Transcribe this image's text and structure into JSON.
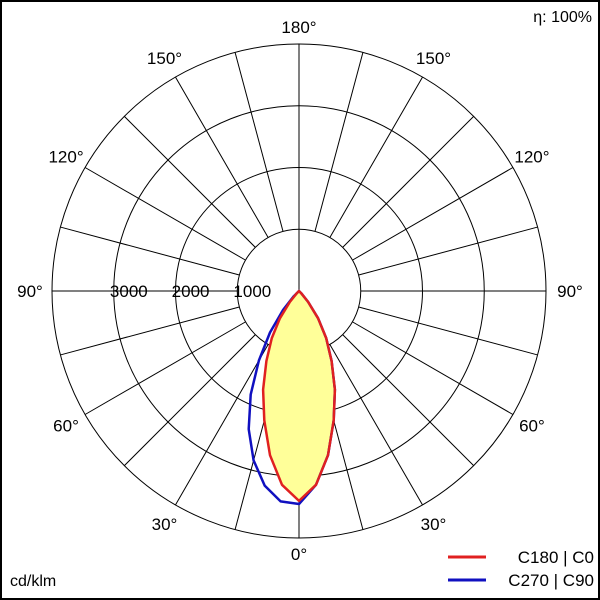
{
  "efficiency_label": "η: 100%",
  "unit_label": "cd/klm",
  "colors": {
    "frame": "#000000",
    "grid": "#000000",
    "fill": "#ffff99",
    "c0": "#e02020",
    "c90": "#1010c0"
  },
  "chart_data": {
    "type": "polar",
    "angle_labels": [
      {
        "angle": 180,
        "text": "180°"
      },
      {
        "angle": 150,
        "text": "150°",
        "side": "left"
      },
      {
        "angle": 150,
        "text": "150°",
        "side": "right"
      },
      {
        "angle": 120,
        "text": "120°",
        "side": "left"
      },
      {
        "angle": 120,
        "text": "120°",
        "side": "right"
      },
      {
        "angle": 90,
        "text": "90°",
        "side": "left"
      },
      {
        "angle": 90,
        "text": "90°",
        "side": "right"
      },
      {
        "angle": 60,
        "text": "60°",
        "side": "left"
      },
      {
        "angle": 60,
        "text": "60°",
        "side": "right"
      },
      {
        "angle": 30,
        "text": "30°",
        "side": "left"
      },
      {
        "angle": 30,
        "text": "30°",
        "side": "right"
      },
      {
        "angle": 0,
        "text": "0°"
      }
    ],
    "radial_ticks": [
      {
        "value": 1000,
        "text": "1000"
      },
      {
        "value": 2000,
        "text": "2000"
      },
      {
        "value": 3000,
        "text": "3000"
      }
    ],
    "r_max": 4000,
    "grid_angle_step": 15,
    "series": [
      {
        "name": "C180 | C0",
        "color_key": "c0",
        "points_left": [
          [
            0,
            3400
          ],
          [
            5,
            3150
          ],
          [
            10,
            2700
          ],
          [
            15,
            2170
          ],
          [
            20,
            1700
          ],
          [
            25,
            1250
          ],
          [
            30,
            880
          ],
          [
            35,
            540
          ],
          [
            40,
            230
          ],
          [
            45,
            50
          ],
          [
            50,
            0
          ]
        ],
        "points_right": [
          [
            0,
            3400
          ],
          [
            5,
            3150
          ],
          [
            10,
            2700
          ],
          [
            15,
            2170
          ],
          [
            20,
            1700
          ],
          [
            25,
            1250
          ],
          [
            30,
            880
          ],
          [
            35,
            540
          ],
          [
            40,
            230
          ],
          [
            45,
            50
          ],
          [
            50,
            0
          ]
        ]
      },
      {
        "name": "C270 | C90",
        "color_key": "c90",
        "points_left": [
          [
            0,
            3450
          ],
          [
            5,
            3420
          ],
          [
            10,
            3200
          ],
          [
            15,
            2840
          ],
          [
            20,
            2380
          ],
          [
            25,
            1850
          ],
          [
            30,
            1300
          ],
          [
            35,
            820
          ],
          [
            40,
            400
          ],
          [
            45,
            120
          ],
          [
            50,
            0
          ]
        ],
        "points_right": [
          [
            0,
            3450
          ],
          [
            5,
            3150
          ],
          [
            10,
            2700
          ],
          [
            15,
            2170
          ],
          [
            20,
            1700
          ],
          [
            25,
            1250
          ],
          [
            30,
            880
          ],
          [
            35,
            540
          ],
          [
            40,
            230
          ],
          [
            45,
            50
          ],
          [
            50,
            0
          ]
        ]
      }
    ]
  }
}
